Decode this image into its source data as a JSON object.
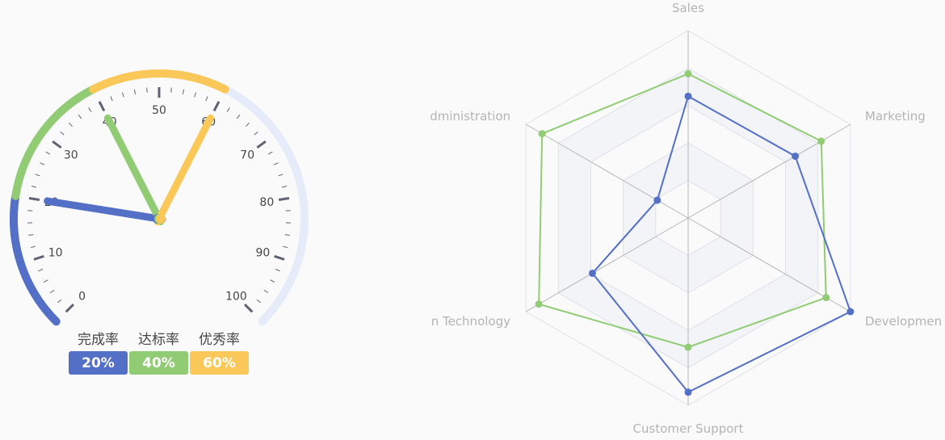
{
  "chart_data": [
    {
      "type": "gauge",
      "min": 0,
      "max": 100,
      "axis_labels": [
        "0",
        "10",
        "20",
        "30",
        "40",
        "50",
        "60",
        "70",
        "80",
        "90",
        "100"
      ],
      "series": [
        {
          "title": "完成率",
          "value": 20,
          "display": "20%",
          "color": "#5470c6"
        },
        {
          "title": "达标率",
          "value": 40,
          "display": "40%",
          "color": "#91cc75"
        },
        {
          "title": "优秀率",
          "value": 60,
          "display": "60%",
          "color": "#fac858"
        }
      ],
      "track_color": "#e5ebf8",
      "tick_color": "#5f6273"
    },
    {
      "type": "radar",
      "indicators": [
        "Sales",
        "Marketing",
        "Developmen",
        "Customer Support",
        "n Technology",
        "dministration"
      ],
      "max": 100,
      "series": [
        {
          "values": [
            65,
            66,
            100,
            93,
            59,
            19
          ],
          "color": "#5470c6"
        },
        {
          "values": [
            77,
            82,
            85,
            69,
            92,
            90
          ],
          "color": "#91cc75"
        }
      ]
    }
  ]
}
